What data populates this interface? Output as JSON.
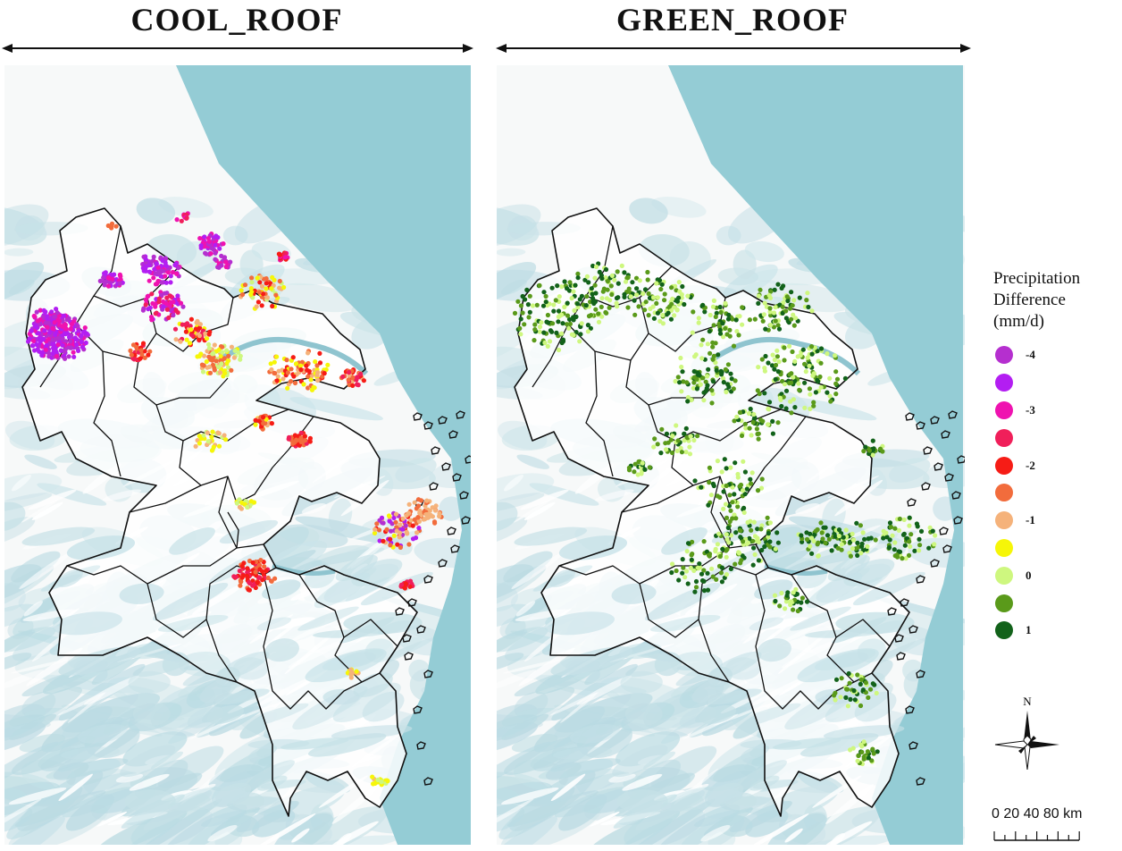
{
  "panels": [
    {
      "title": "COOL_ROOF",
      "dominant": "warm"
    },
    {
      "title": "GREEN_ROOF",
      "dominant": "green"
    }
  ],
  "legend": {
    "title_lines": [
      "Precipitation",
      "Difference",
      "(mm/d)"
    ],
    "items": [
      {
        "label": "-4",
        "color": "#b52fcf"
      },
      {
        "label": "",
        "color": "#b31ef2"
      },
      {
        "label": "-3",
        "color": "#ef12b0"
      },
      {
        "label": "",
        "color": "#f01f5a"
      },
      {
        "label": "-2",
        "color": "#f61c16"
      },
      {
        "label": "",
        "color": "#f26c3c"
      },
      {
        "label": "-1",
        "color": "#f5b27a"
      },
      {
        "label": "",
        "color": "#f6f608"
      },
      {
        "label": "0",
        "color": "#cef77f"
      },
      {
        "label": "",
        "color": "#5a9a1a"
      },
      {
        "label": "1",
        "color": "#12621a"
      }
    ]
  },
  "north_label": "N",
  "scale_bar": {
    "label": "0 20 40      80 km"
  },
  "colors": {
    "sea": "#94ccd5",
    "land_bg": "#f7f9f9",
    "terrain": "#c6e1e7",
    "region_fill": "#ffffff",
    "boundary": "#111111"
  }
}
